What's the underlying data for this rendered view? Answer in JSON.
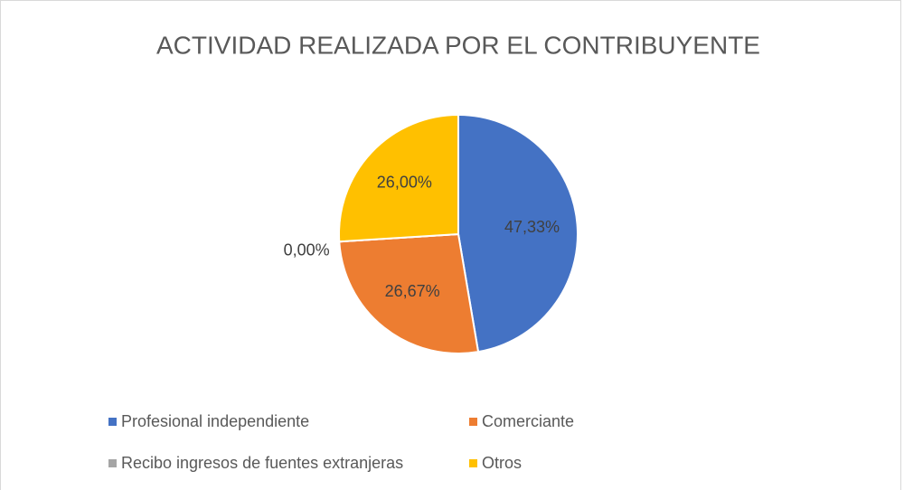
{
  "chart_data": {
    "type": "pie",
    "title": "ACTIVIDAD REALIZADA POR EL CONTRIBUYENTE",
    "categories": [
      "Profesional independiente",
      "Comerciante",
      "Recibo ingresos de fuentes extranjeras",
      "Otros"
    ],
    "values": [
      47.33,
      26.67,
      0,
      26
    ],
    "value_labels": [
      "47,33%",
      "26,67%",
      "0,00%",
      "26,00%"
    ],
    "colors": [
      "#4472c4",
      "#ed7d31",
      "#a5a5a5",
      "#ffc000"
    ],
    "legend": "bottom"
  }
}
